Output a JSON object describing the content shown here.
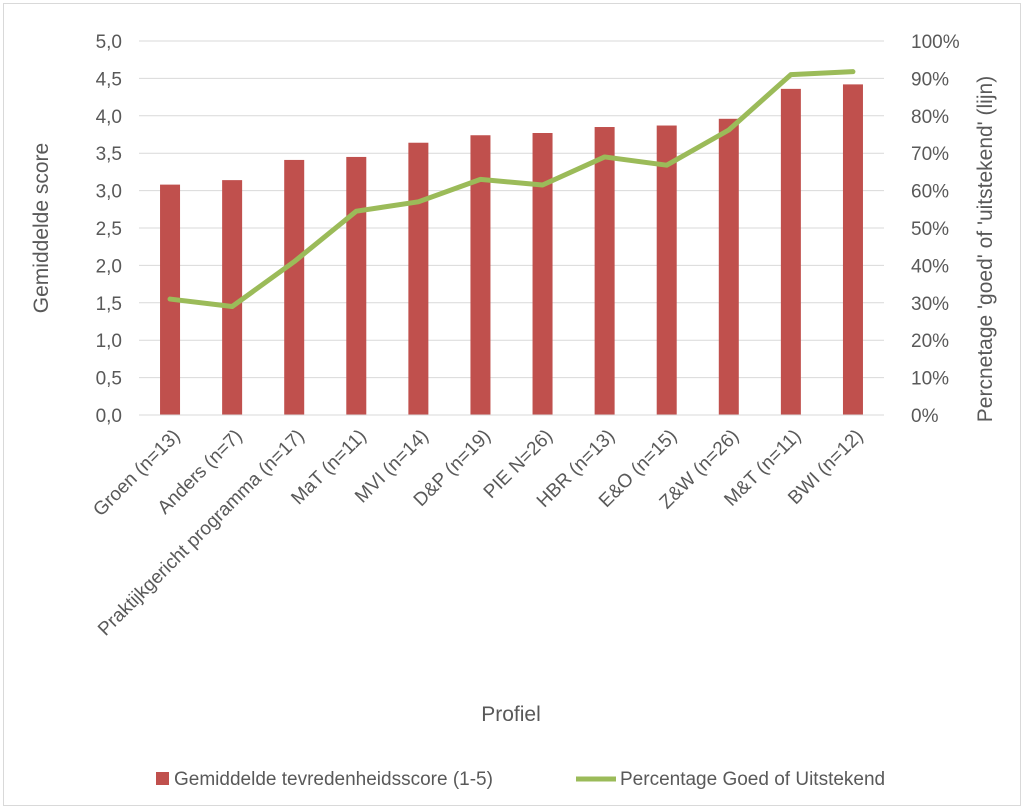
{
  "chart_data": {
    "type": "bar",
    "categories": [
      "Groen (n=13)",
      "Anders  (n=7)",
      "Praktijkgericht programma (n=17)",
      "MaT (n=11)",
      "MVI (n=14)",
      "D&P (n=19)",
      "PIE N=26)",
      "HBR (n=13)",
      "E&O (n=15)",
      "Z&W (n=26)",
      "M&T (n=11)",
      "BWI (n=12)"
    ],
    "series": [
      {
        "name": "Gemiddelde tevredenheidsscore (1-5)",
        "type": "bar",
        "axis": "left",
        "color": "#c0504d",
        "values": [
          3.08,
          3.14,
          3.41,
          3.45,
          3.64,
          3.74,
          3.77,
          3.85,
          3.87,
          3.96,
          4.36,
          4.42
        ]
      },
      {
        "name": "Percentage Goed of Uitstekend",
        "type": "line",
        "axis": "right",
        "color": "#9bbb59",
        "values": [
          0.31,
          0.29,
          0.41,
          0.545,
          0.57,
          0.63,
          0.615,
          0.69,
          0.668,
          0.762,
          0.91,
          0.918
        ]
      }
    ],
    "xlabel": "Profiel",
    "ylabel": "Gemiddelde score",
    "y2label": "Percnetage 'goed' of 'uitstekend' (lijn)",
    "ylim": [
      0,
      5
    ],
    "y2lim": [
      0,
      1
    ],
    "yticks": [
      "0,0",
      "0,5",
      "1,0",
      "1,5",
      "2,0",
      "2,5",
      "3,0",
      "3,5",
      "4,0",
      "4,5",
      "5,0"
    ],
    "y2ticks": [
      "0%",
      "10%",
      "20%",
      "30%",
      "40%",
      "50%",
      "60%",
      "70%",
      "80%",
      "90%",
      "100%"
    ],
    "grid": true,
    "legend_position": "bottom"
  }
}
